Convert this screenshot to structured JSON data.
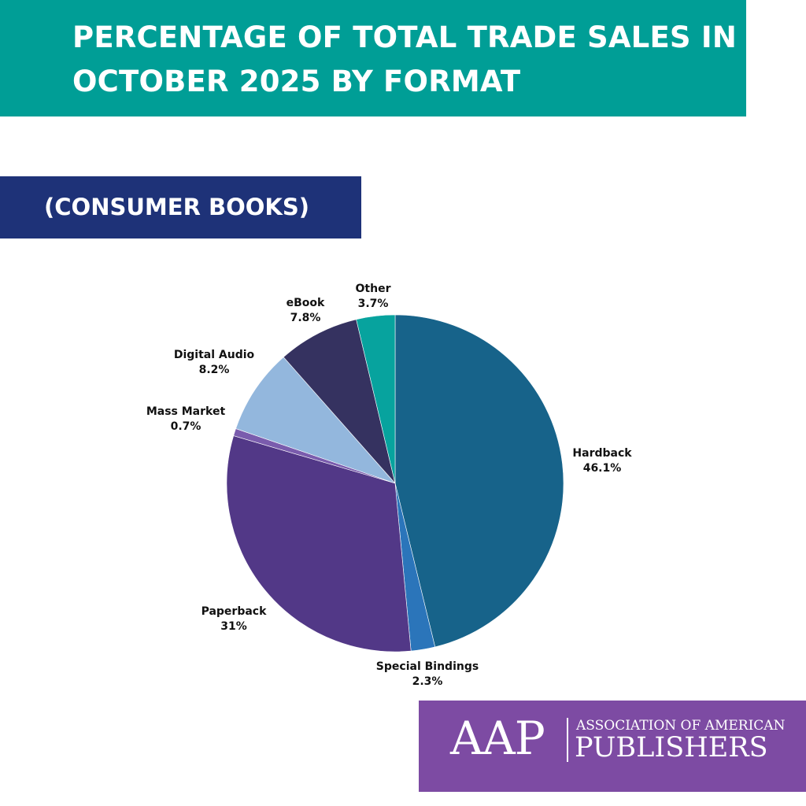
{
  "header": {
    "title_line1": "PERCENTAGE OF TOTAL TRADE SALES IN",
    "title_line2": "OCTOBER 2025 BY FORMAT",
    "subtitle": "(CONSUMER BOOKS)"
  },
  "colors": {
    "title_bar": "#009e96",
    "subtitle_bar": "#1e3278",
    "logo_box": "#7d4ba3"
  },
  "logo": {
    "mark": "AAP",
    "line1": "ASSOCIATION OF AMERICAN",
    "line2": "PUBLISHERS"
  },
  "chart_data": {
    "type": "pie",
    "title": "PERCENTAGE OF TOTAL TRADE SALES IN OCTOBER 2025 BY FORMAT",
    "subtitle": "(CONSUMER BOOKS)",
    "start": "12 o'clock",
    "direction": "clockwise",
    "slices": [
      {
        "label": "Hardback",
        "value": 46.1,
        "display": "46.1%",
        "color": "#17638a"
      },
      {
        "label": "Special Bindings",
        "value": 2.3,
        "display": "2.3%",
        "color": "#2b75ba"
      },
      {
        "label": "Paperback",
        "value": 31,
        "display": "31%",
        "color": "#523887"
      },
      {
        "label": "Mass Market",
        "value": 0.7,
        "display": "0.7%",
        "color": "#7a5cad"
      },
      {
        "label": "Digital Audio",
        "value": 8.2,
        "display": "8.2%",
        "color": "#93b7dd"
      },
      {
        "label": "eBook",
        "value": 7.8,
        "display": "7.8%",
        "color": "#353260"
      },
      {
        "label": "Other",
        "value": 3.7,
        "display": "3.7%",
        "color": "#07a39e"
      }
    ]
  }
}
